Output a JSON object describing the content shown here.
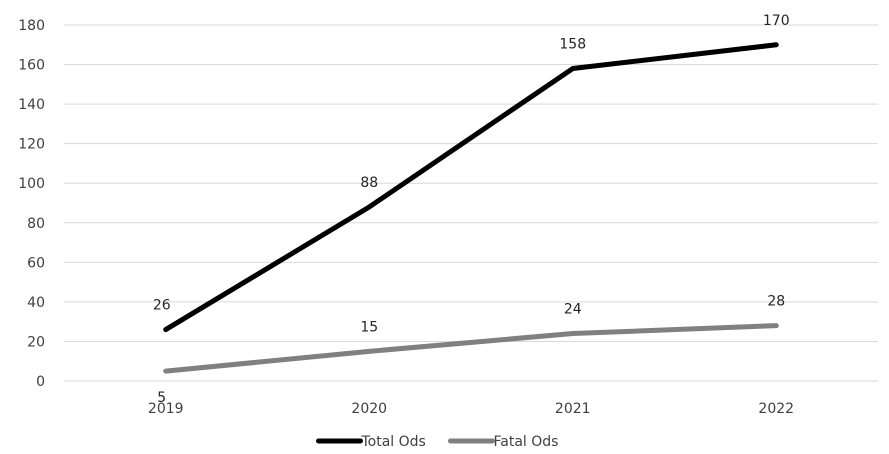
{
  "chart_data": {
    "type": "line",
    "categories": [
      "2019",
      "2020",
      "2021",
      "2022"
    ],
    "series": [
      {
        "name": "Total Ods",
        "values": [
          26,
          88,
          158,
          170
        ],
        "color": "#000000"
      },
      {
        "name": "Fatal Ods",
        "values": [
          5,
          15,
          24,
          28
        ],
        "color": "#808080"
      }
    ],
    "ylim": [
      0,
      180
    ],
    "yticks": [
      0,
      20,
      40,
      60,
      80,
      100,
      120,
      140,
      160,
      180
    ],
    "grid": true,
    "legend_position": "bottom",
    "data_labels": true
  }
}
